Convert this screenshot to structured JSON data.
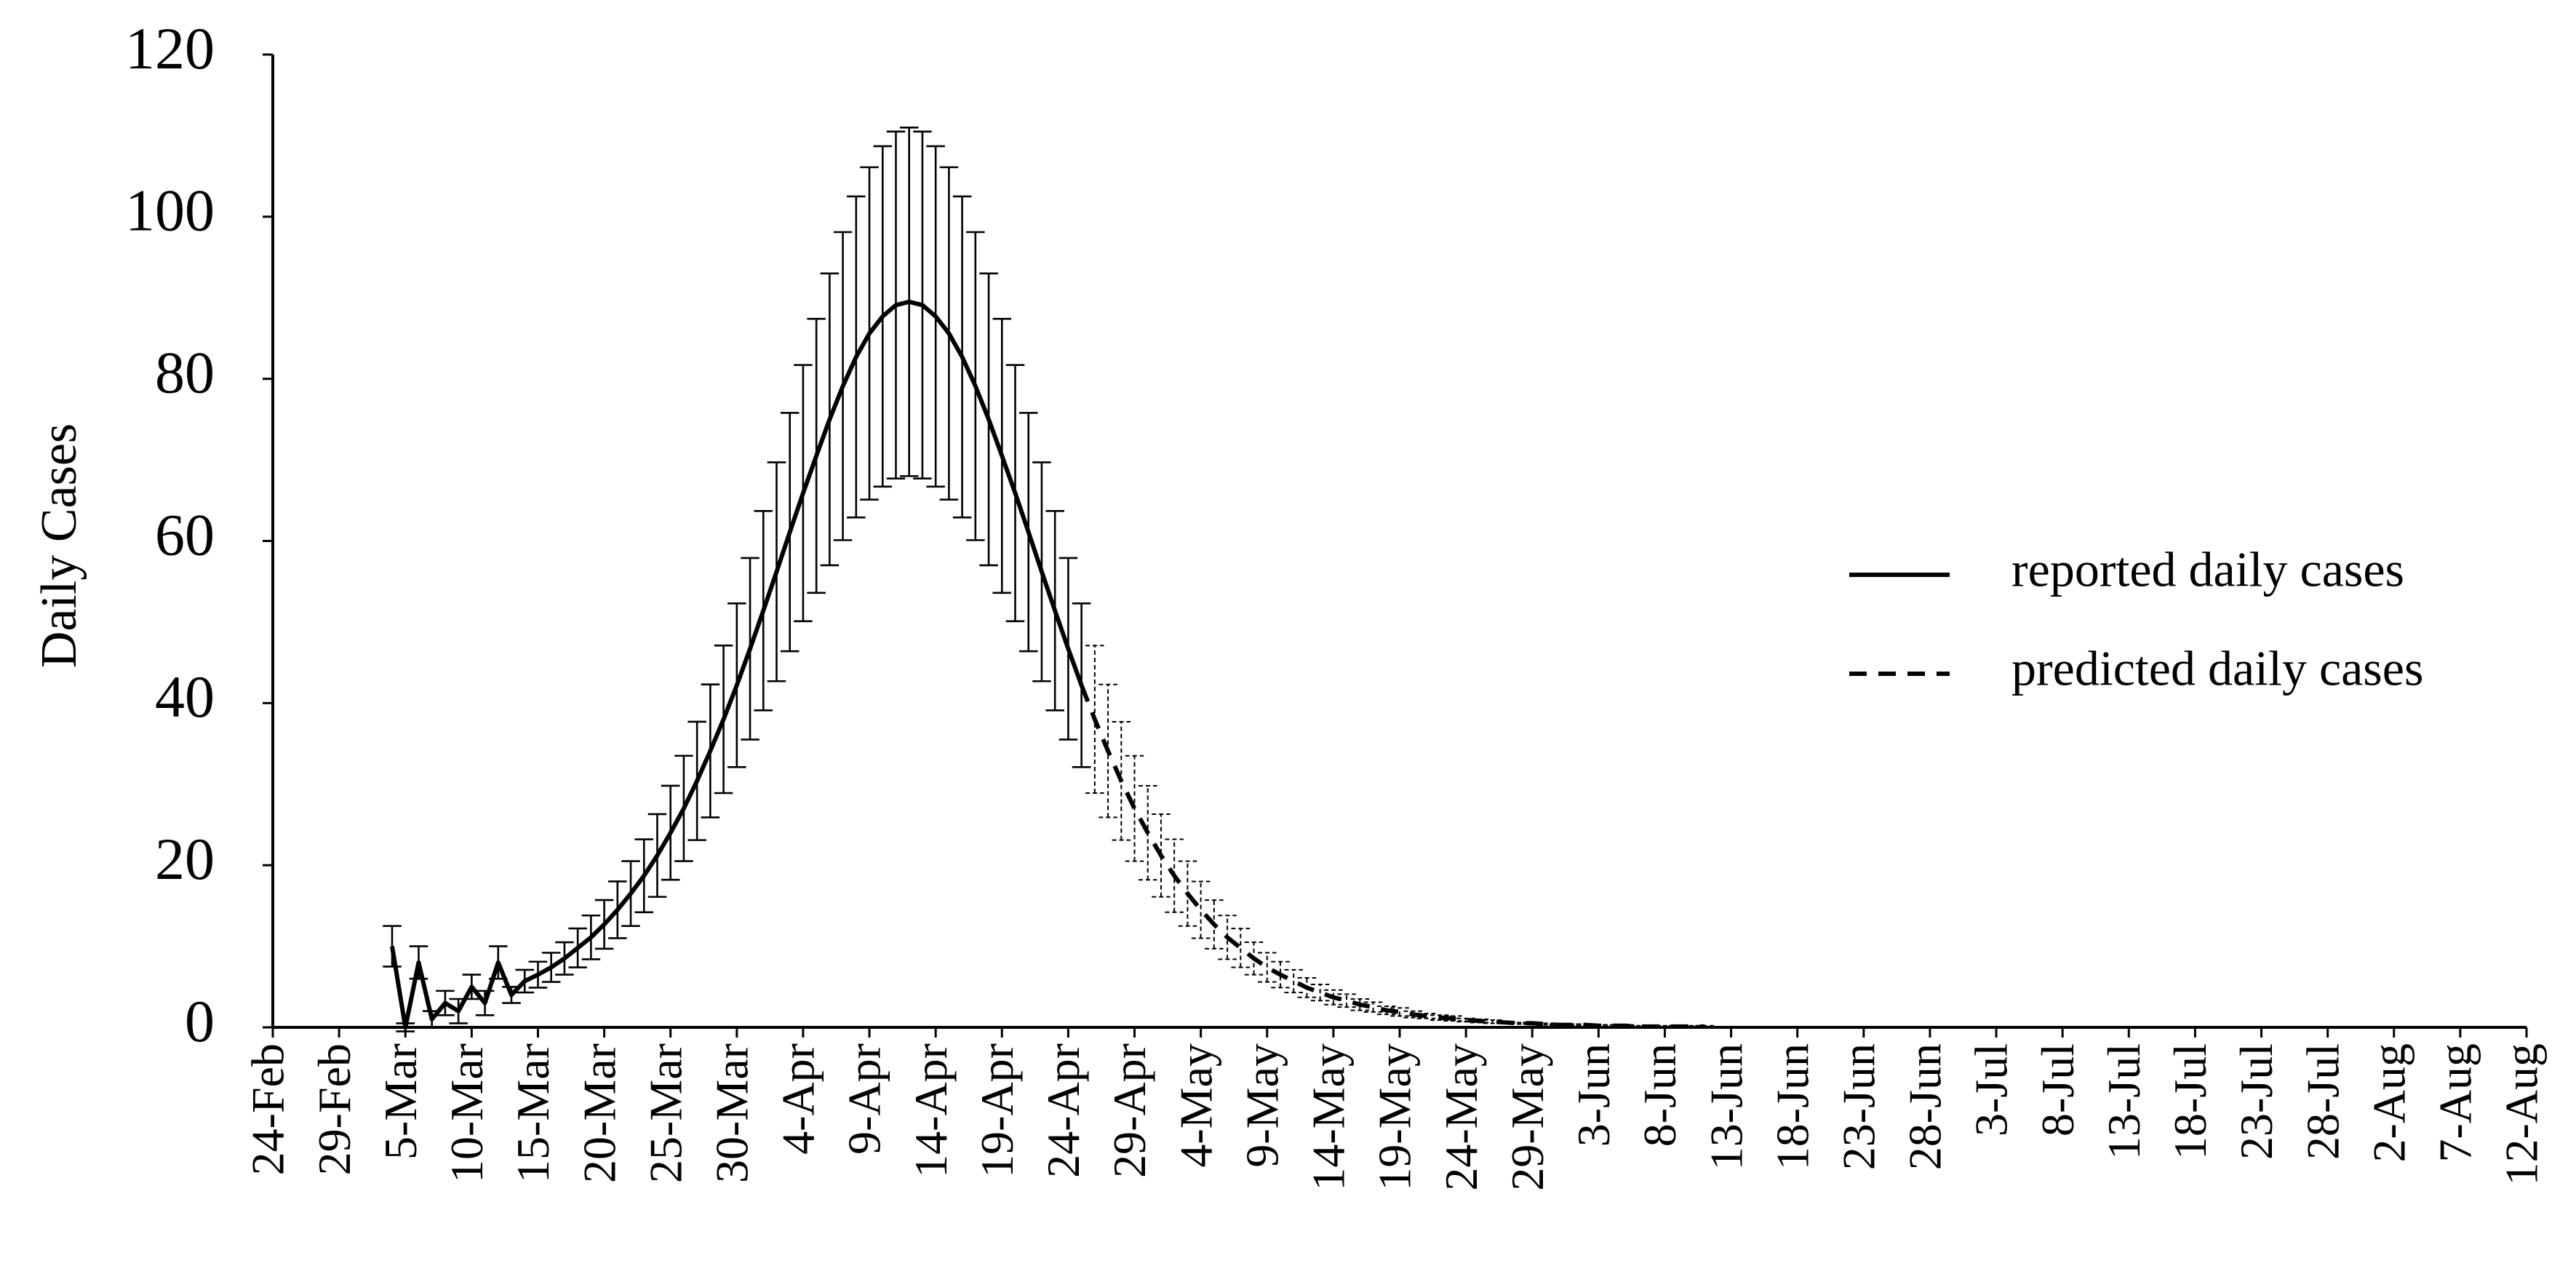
{
  "chart_data": {
    "type": "line",
    "ylabel": "Daily Cases",
    "ylim": [
      0,
      120
    ],
    "yticks": [
      0,
      20,
      40,
      60,
      80,
      100,
      120
    ],
    "grid": false,
    "legend": "right",
    "categories": [
      "24-Feb",
      null,
      null,
      null,
      null,
      "29-Feb",
      null,
      null,
      null,
      null,
      "5-Mar",
      null,
      null,
      null,
      null,
      "10-Mar",
      null,
      null,
      null,
      null,
      "15-Mar",
      null,
      null,
      null,
      null,
      "20-Mar",
      null,
      null,
      null,
      null,
      "25-Mar",
      null,
      null,
      null,
      null,
      "30-Mar",
      null,
      null,
      null,
      null,
      "4-Apr",
      null,
      null,
      null,
      null,
      "9-Apr",
      null,
      null,
      null,
      null,
      "14-Apr",
      null,
      null,
      null,
      null,
      "19-Apr",
      null,
      null,
      null,
      null,
      "24-Apr",
      null,
      null,
      null,
      null,
      "29-Apr",
      null,
      null,
      null,
      null,
      "4-May",
      null,
      null,
      null,
      null,
      "9-May",
      null,
      null,
      null,
      null,
      "14-May",
      null,
      null,
      null,
      null,
      "19-May",
      null,
      null,
      null,
      null,
      "24-May",
      null,
      null,
      null,
      null,
      "29-May",
      null,
      null,
      null,
      null,
      "3-Jun",
      null,
      null,
      null,
      null,
      "8-Jun",
      null,
      null,
      null,
      null,
      "13-Jun",
      null,
      null,
      null,
      null,
      "18-Jun",
      null,
      null,
      null,
      null,
      "23-Jun",
      null,
      null,
      null,
      null,
      "28-Jun",
      null,
      null,
      null,
      null,
      "3-Jul",
      null,
      null,
      null,
      null,
      "8-Jul",
      null,
      null,
      null,
      null,
      "13-Jul",
      null,
      null,
      null,
      null,
      "18-Jul",
      null,
      null,
      null,
      null,
      "23-Jul",
      null,
      null,
      null,
      null,
      "28-Jul",
      null,
      null,
      null,
      null,
      "2-Aug",
      null,
      null,
      null,
      null,
      "7-Aug",
      null,
      null,
      null,
      null,
      "12-Aug"
    ],
    "series": [
      {
        "name": "reported daily cases",
        "color": "#000000",
        "line_style": "solid",
        "values": [
          null,
          null,
          null,
          null,
          null,
          null,
          null,
          null,
          null,
          10,
          0,
          8,
          1,
          3,
          2,
          5,
          3,
          8,
          4,
          5.7,
          6.5,
          7.4,
          8.5,
          9.8,
          11.1,
          12.7,
          14.5,
          16.5,
          18.7,
          21.2,
          24,
          27,
          30.4,
          34.1,
          38,
          42.2,
          46.7,
          51.4,
          56.2,
          61.1,
          65.9,
          70.5,
          75,
          79.1,
          82.7,
          85.6,
          87.7,
          89.1,
          89.5,
          89.1,
          87.7,
          85.6,
          82.7,
          79.1,
          75,
          70.5,
          65.9,
          61.1,
          56.2,
          51.4,
          46.7,
          42.2,
          null,
          null,
          null,
          null,
          null,
          null,
          null,
          null,
          null,
          null,
          null,
          null,
          null,
          null,
          null,
          null,
          null,
          null,
          null,
          null,
          null,
          null,
          null,
          null,
          null,
          null,
          null,
          null,
          null,
          null,
          null,
          null,
          null,
          null,
          null,
          null,
          null,
          null,
          null,
          null,
          null,
          null,
          null,
          null,
          null,
          null,
          null,
          null,
          null,
          null,
          null,
          null,
          null,
          null,
          null,
          null,
          null,
          null,
          null,
          null,
          null,
          null,
          null,
          null,
          null,
          null,
          null,
          null,
          null,
          null,
          null,
          null,
          null,
          null,
          null,
          null,
          null,
          null,
          null,
          null,
          null,
          null,
          null,
          null,
          null,
          null,
          null,
          null,
          null,
          null,
          null,
          null,
          null,
          null,
          null,
          null,
          null,
          null,
          null,
          null,
          null,
          null,
          null,
          null,
          null,
          null,
          null,
          null,
          null
        ],
        "errors": [
          null,
          null,
          null,
          null,
          null,
          null,
          null,
          null,
          null,
          2.5,
          0.5,
          2,
          1,
          1.5,
          1.5,
          1.5,
          1.5,
          2,
          1,
          1.4,
          1.6,
          1.8,
          2,
          2.4,
          2.7,
          3,
          3.5,
          4,
          4.5,
          5.1,
          5.8,
          6.5,
          7.3,
          8.2,
          9.1,
          10.1,
          11.2,
          12.3,
          13.5,
          14.7,
          15.8,
          16.9,
          18,
          19,
          19.8,
          20.5,
          21,
          21.4,
          21.5,
          21.4,
          21,
          20.5,
          19.8,
          19,
          18,
          16.9,
          15.8,
          14.7,
          13.5,
          12.3,
          11.2,
          10.1,
          null,
          null,
          null,
          null,
          null,
          null,
          null,
          null,
          null,
          null,
          null,
          null,
          null,
          null,
          null,
          null,
          null,
          null,
          null,
          null,
          null,
          null,
          null,
          null,
          null,
          null,
          null,
          null,
          null,
          null,
          null,
          null,
          null,
          null,
          null,
          null,
          null,
          null,
          null,
          null,
          null,
          null,
          null,
          null,
          null,
          null,
          null,
          null,
          null,
          null,
          null,
          null,
          null,
          null,
          null,
          null,
          null,
          null,
          null,
          null,
          null,
          null,
          null,
          null,
          null,
          null,
          null,
          null,
          null,
          null,
          null,
          null,
          null,
          null,
          null,
          null,
          null,
          null,
          null,
          null,
          null,
          null,
          null,
          null,
          null,
          null,
          null,
          null,
          null,
          null,
          null,
          null,
          null,
          null,
          null,
          null,
          null,
          null,
          null,
          null,
          null,
          null,
          null,
          null,
          null,
          null,
          null,
          null,
          null
        ]
      },
      {
        "name": "predicted daily cases",
        "color": "#000000",
        "line_style": "dashed",
        "values": [
          null,
          null,
          null,
          null,
          null,
          null,
          null,
          null,
          null,
          null,
          null,
          null,
          null,
          null,
          null,
          null,
          null,
          null,
          null,
          null,
          null,
          null,
          null,
          null,
          null,
          null,
          null,
          null,
          null,
          null,
          null,
          null,
          null,
          null,
          null,
          null,
          null,
          null,
          null,
          null,
          null,
          null,
          null,
          null,
          null,
          null,
          null,
          null,
          null,
          null,
          null,
          null,
          null,
          null,
          null,
          null,
          null,
          null,
          null,
          null,
          null,
          42.2,
          38,
          34.1,
          30.4,
          27,
          24,
          21.2,
          18.7,
          16.5,
          14.5,
          12.7,
          11.1,
          9.8,
          8.5,
          7.4,
          6.5,
          5.7,
          4.9,
          4.3,
          3.7,
          3.3,
          2.8,
          2.5,
          2.1,
          1.9,
          1.6,
          1.4,
          1.2,
          1.1,
          0.9,
          0.8,
          0.7,
          0.6,
          0.5,
          0.5,
          0.4,
          0.3,
          0.3,
          0.3,
          0.2,
          0.2,
          0.2,
          0.1,
          0.1,
          0.1,
          0.1,
          0.1,
          0.1,
          null,
          null,
          null,
          null,
          null,
          null,
          null,
          null,
          null,
          null,
          null,
          null,
          null,
          null,
          null,
          null,
          null,
          null,
          null,
          null,
          null,
          null,
          null,
          null,
          null,
          null,
          null,
          null,
          null,
          null,
          null,
          null,
          null,
          null,
          null,
          null,
          null,
          null,
          null,
          null,
          null,
          null,
          null,
          null,
          null,
          null,
          null,
          null,
          null,
          null,
          null,
          null,
          null,
          null,
          null,
          null,
          null,
          null,
          null,
          null,
          null,
          null
        ],
        "errors": [
          null,
          null,
          null,
          null,
          null,
          null,
          null,
          null,
          null,
          null,
          null,
          null,
          null,
          null,
          null,
          null,
          null,
          null,
          null,
          null,
          null,
          null,
          null,
          null,
          null,
          null,
          null,
          null,
          null,
          null,
          null,
          null,
          null,
          null,
          null,
          null,
          null,
          null,
          null,
          null,
          null,
          null,
          null,
          null,
          null,
          null,
          null,
          null,
          null,
          null,
          null,
          null,
          null,
          null,
          null,
          null,
          null,
          null,
          null,
          null,
          null,
          10.1,
          9.1,
          8.2,
          7.3,
          6.5,
          5.8,
          5.1,
          4.5,
          4,
          3.5,
          3,
          2.7,
          2.4,
          2,
          1.8,
          1.6,
          1.4,
          1.2,
          1,
          0.9,
          0.8,
          0.7,
          0.6,
          0.5,
          0.5,
          0.4,
          0.3,
          0.3,
          0.3,
          0.2,
          0.2,
          0.2,
          0.1,
          0.1,
          0.1,
          0.1,
          0.1,
          0.1,
          0.1,
          0.1,
          0.1,
          0.1,
          0.1,
          0.1,
          0.1,
          0.1,
          0.1,
          0.1,
          null,
          null,
          null,
          null,
          null,
          null,
          null,
          null,
          null,
          null,
          null,
          null,
          null,
          null,
          null,
          null,
          null,
          null,
          null,
          null,
          null,
          null,
          null,
          null,
          null,
          null,
          null,
          null,
          null,
          null,
          null,
          null,
          null,
          null,
          null,
          null,
          null,
          null,
          null,
          null,
          null,
          null,
          null,
          null,
          null,
          null,
          null,
          null,
          null,
          null,
          null,
          null,
          null,
          null,
          null,
          null,
          null,
          null,
          null,
          null,
          null,
          null
        ]
      }
    ]
  }
}
